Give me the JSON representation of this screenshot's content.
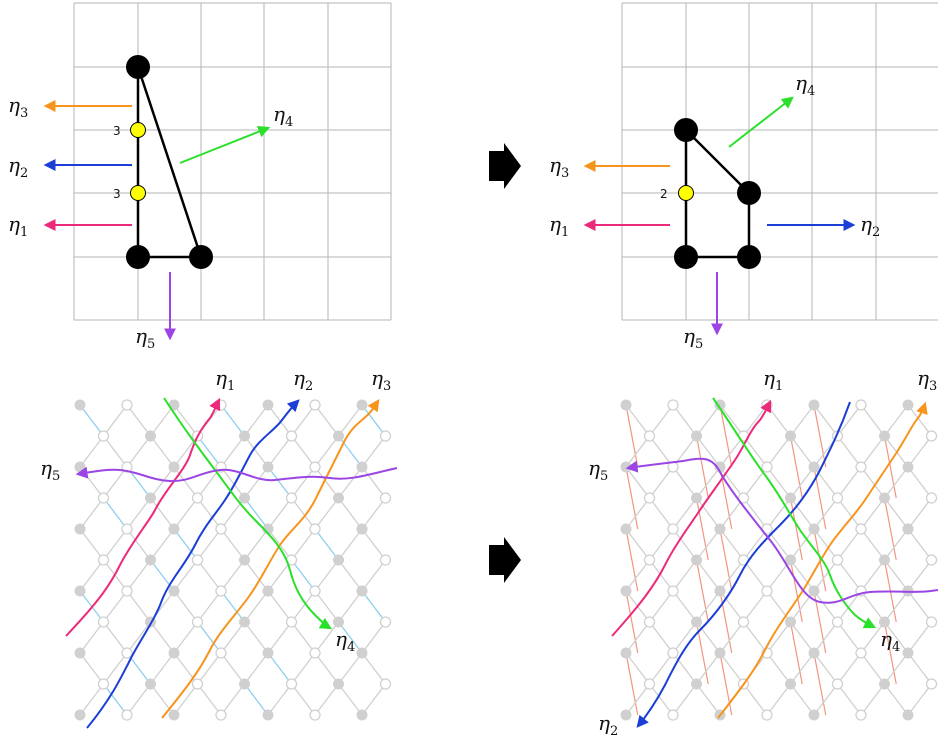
{
  "panels": {
    "top_left": {
      "multiplicity_labels": [
        "3",
        "3"
      ],
      "legs": [
        {
          "symbol": "η",
          "index": "3",
          "color": "#f7941d"
        },
        {
          "symbol": "η",
          "index": "2",
          "color": "#1b3fd6"
        },
        {
          "symbol": "η",
          "index": "1",
          "color": "#ec2a7b"
        },
        {
          "symbol": "η",
          "index": "4",
          "color": "#2be02b"
        },
        {
          "symbol": "η",
          "index": "5",
          "color": "#9b45e4"
        }
      ]
    },
    "top_right": {
      "multiplicity_labels": [
        "2"
      ],
      "legs": [
        {
          "symbol": "η",
          "index": "3",
          "color": "#f7941d"
        },
        {
          "symbol": "η",
          "index": "1",
          "color": "#ec2a7b"
        },
        {
          "symbol": "η",
          "index": "2",
          "color": "#1b3fd6"
        },
        {
          "symbol": "η",
          "index": "4",
          "color": "#2be02b"
        },
        {
          "symbol": "η",
          "index": "5",
          "color": "#9b45e4"
        }
      ]
    },
    "bottom_left": {
      "strand_labels": [
        {
          "symbol": "η",
          "index": "1"
        },
        {
          "symbol": "η",
          "index": "2"
        },
        {
          "symbol": "η",
          "index": "3"
        },
        {
          "symbol": "η",
          "index": "5"
        },
        {
          "symbol": "η",
          "index": "4"
        }
      ]
    },
    "bottom_right": {
      "strand_labels": [
        {
          "symbol": "η",
          "index": "1"
        },
        {
          "symbol": "η",
          "index": "3"
        },
        {
          "symbol": "η",
          "index": "5"
        },
        {
          "symbol": "η",
          "index": "4"
        },
        {
          "symbol": "η",
          "index": "2"
        }
      ]
    }
  },
  "colors": {
    "grid": "#b5b5b5",
    "lattice_gray": "#d0d0d0",
    "edge_blue": "#8ecfee",
    "edge_salmon": "#f2957f",
    "vertex_yellow": "#ffff00",
    "arrow_black": "#000000"
  }
}
